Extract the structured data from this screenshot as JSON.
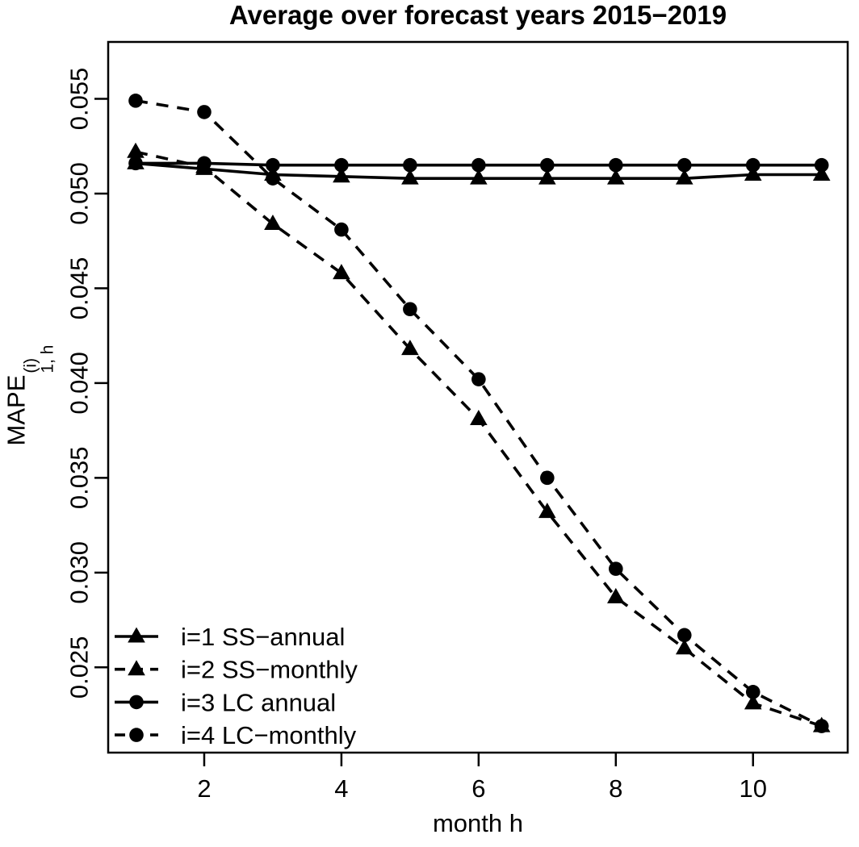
{
  "chart_data": {
    "type": "line",
    "title": "Average over forecast years 2015−2019",
    "xlabel": "month h",
    "ylabel": {
      "base": "MAPE",
      "sup": "(i)",
      "sub": "1, h"
    },
    "x": [
      1,
      2,
      3,
      4,
      5,
      6,
      7,
      8,
      9,
      10,
      11
    ],
    "series": [
      {
        "id": "i1-ss-annual",
        "name": "i=1 SS−annual",
        "linestyle": "solid",
        "marker": "triangle",
        "values": [
          0.0516,
          0.0513,
          0.051,
          0.0509,
          0.0508,
          0.0508,
          0.0508,
          0.0508,
          0.0508,
          0.051,
          0.051
        ]
      },
      {
        "id": "i2-ss-monthly",
        "name": "i=2 SS−monthly",
        "linestyle": "dashed",
        "marker": "triangle",
        "values": [
          0.0522,
          0.0514,
          0.0484,
          0.0458,
          0.0418,
          0.0381,
          0.0332,
          0.0287,
          0.026,
          0.0231,
          0.0219
        ]
      },
      {
        "id": "i3-lc-annual",
        "name": "i=3 LC annual",
        "linestyle": "solid",
        "marker": "circle",
        "values": [
          0.0516,
          0.0516,
          0.0515,
          0.0515,
          0.0515,
          0.0515,
          0.0515,
          0.0515,
          0.0515,
          0.0515,
          0.0515
        ]
      },
      {
        "id": "i4-lc-monthly",
        "name": "i=4 LC−monthly",
        "linestyle": "dashed",
        "marker": "circle",
        "values": [
          0.0549,
          0.0543,
          0.0508,
          0.0481,
          0.0439,
          0.0402,
          0.035,
          0.0302,
          0.0267,
          0.0237,
          0.0219
        ]
      }
    ],
    "x_ticks": [
      2,
      4,
      6,
      8,
      10
    ],
    "y_ticks": [
      0.025,
      0.03,
      0.035,
      0.04,
      0.045,
      0.05,
      0.055
    ],
    "y_tick_labels": [
      "0.025",
      "0.030",
      "0.035",
      "0.040",
      "0.045",
      "0.050",
      "0.055"
    ],
    "xlim": [
      0.6,
      11.38
    ],
    "ylim": [
      0.0205,
      0.058
    ],
    "grid": false,
    "legend_position": "bottom-left",
    "colors": {
      "foreground": "#000000",
      "background": "#ffffff"
    }
  }
}
